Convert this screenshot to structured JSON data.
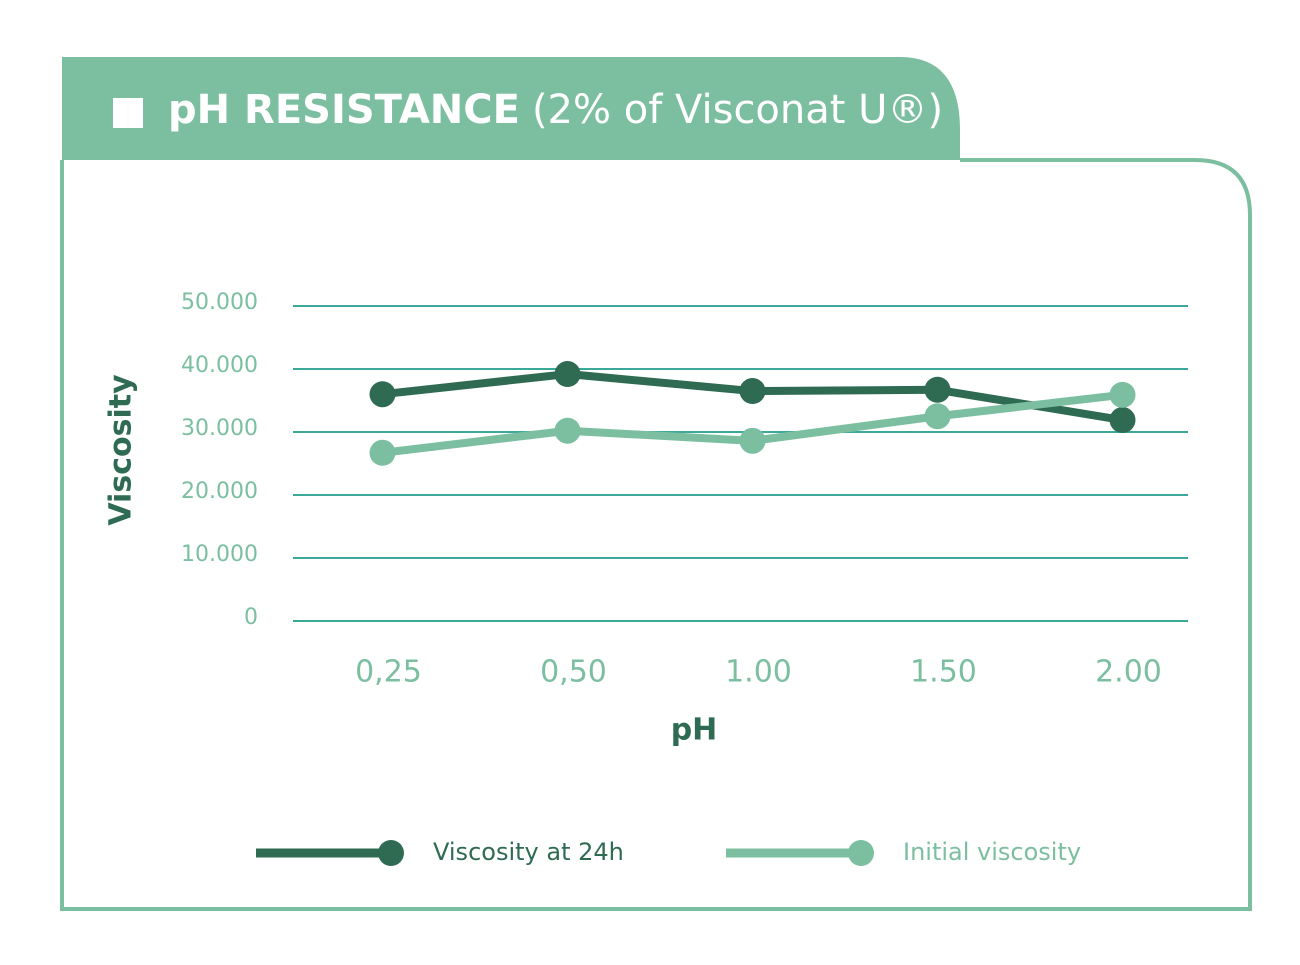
{
  "chart_data": {
    "type": "line",
    "title": "pH RESISTANCE",
    "subtitle": "(2% of Visconat U®)",
    "x_label": "pH",
    "y_label": "Viscosity",
    "categories": [
      "0,25",
      "0,50",
      "1.00",
      "1.50",
      "2.00"
    ],
    "series": [
      {
        "name": "Viscosity at 24h",
        "color": "#2e6b52",
        "values": [
          36000,
          39200,
          36500,
          36700,
          31900
        ]
      },
      {
        "name": "Initial viscosity",
        "color": "#7bbfa0",
        "values": [
          26700,
          30200,
          28600,
          32500,
          35900
        ]
      }
    ],
    "ylim": [
      0,
      50000
    ],
    "yticks": [
      0,
      {
        "value": 10000,
        "label": "10.000"
      },
      {
        "value": 20000,
        "label": "20.000"
      },
      {
        "value": 30000,
        "label": "30.000"
      },
      {
        "value": 40000,
        "label": "40.000"
      },
      {
        "value": 50000,
        "label": "50.000"
      }
    ],
    "grid": true,
    "grid_color": "#3aa99a"
  }
}
